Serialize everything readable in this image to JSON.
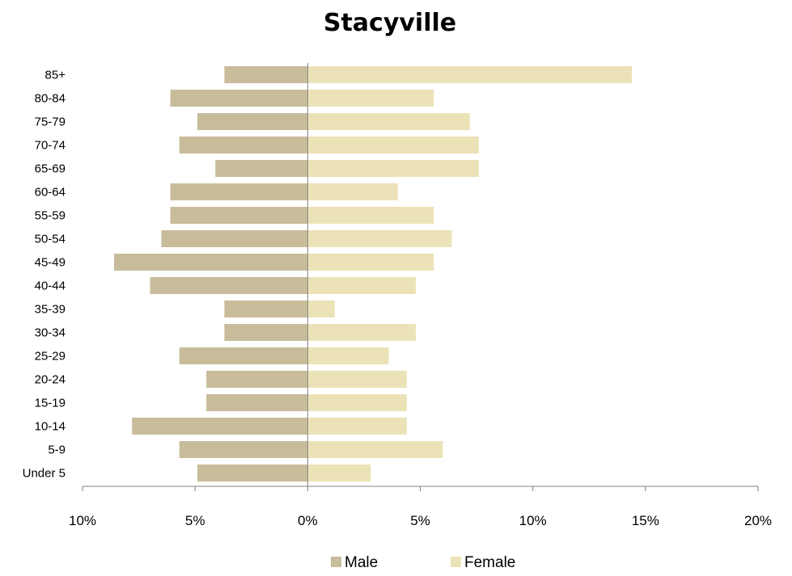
{
  "chart_data": {
    "type": "bar",
    "orientation": "horizontal",
    "title": "Stacyville",
    "categories": [
      "Under 5",
      "5-9",
      "10-14",
      "15-19",
      "20-24",
      "25-29",
      "30-34",
      "35-39",
      "40-44",
      "45-49",
      "50-54",
      "55-59",
      "60-64",
      "65-69",
      "70-74",
      "75-79",
      "80-84",
      "85+"
    ],
    "series": [
      {
        "name": "Male",
        "color": "#c8bc9a",
        "direction": "left",
        "values": [
          4.9,
          5.7,
          7.8,
          4.5,
          4.5,
          5.7,
          3.7,
          3.7,
          7.0,
          8.6,
          6.5,
          6.1,
          6.1,
          4.1,
          5.7,
          4.9,
          6.1,
          3.7
        ]
      },
      {
        "name": "Female",
        "color": "#ebe3b7",
        "direction": "right",
        "values": [
          2.8,
          6.0,
          4.4,
          4.4,
          4.4,
          3.6,
          4.8,
          1.2,
          4.8,
          5.6,
          6.4,
          5.6,
          4.0,
          7.6,
          7.6,
          7.2,
          5.6,
          14.4
        ]
      }
    ],
    "xlim": [
      -10,
      20
    ],
    "xticks": [
      -10,
      -5,
      0,
      5,
      10,
      15,
      20
    ],
    "xtick_labels": [
      "10%",
      "5%",
      "0%",
      "5%",
      "10%",
      "15%",
      "20%"
    ],
    "grid": false,
    "legend_position": "bottom"
  }
}
